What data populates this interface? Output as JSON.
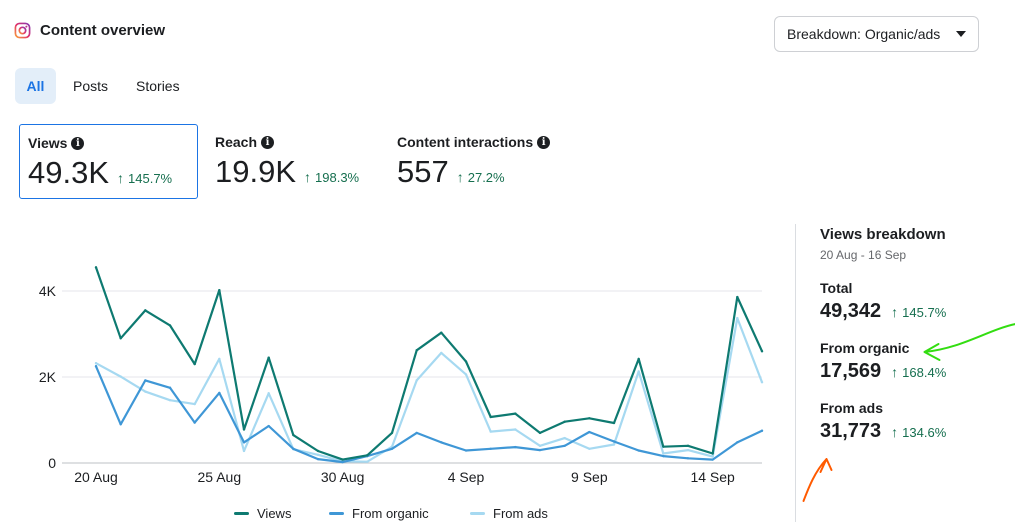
{
  "header": {
    "title": "Content overview",
    "icon": "instagram-icon"
  },
  "breakdown": {
    "label": "Breakdown: Organic/ads"
  },
  "tabs": [
    {
      "label": "All",
      "active": true
    },
    {
      "label": "Posts",
      "active": false
    },
    {
      "label": "Stories",
      "active": false
    }
  ],
  "metrics": [
    {
      "label": "Views",
      "value": "49.3K",
      "delta": "145.7%"
    },
    {
      "label": "Reach",
      "value": "19.9K",
      "delta": "198.3%"
    },
    {
      "label": "Content interactions",
      "value": "557",
      "delta": "27.2%"
    }
  ],
  "colors": {
    "views": "#0e7a71",
    "organic": "#3f97d6",
    "ads": "#a6d9f1",
    "accent": "#1b74e4",
    "positive": "#166f4f"
  },
  "chart_data": {
    "type": "line",
    "x": [
      "20 Aug",
      "21 Aug",
      "22 Aug",
      "23 Aug",
      "24 Aug",
      "25 Aug",
      "26 Aug",
      "27 Aug",
      "28 Aug",
      "29 Aug",
      "30 Aug",
      "31 Aug",
      "1 Sep",
      "2 Sep",
      "3 Sep",
      "4 Sep",
      "5 Sep",
      "6 Sep",
      "7 Sep",
      "8 Sep",
      "9 Sep",
      "10 Sep",
      "11 Sep",
      "12 Sep",
      "13 Sep",
      "14 Sep",
      "15 Sep",
      "16 Sep"
    ],
    "xticks": [
      "20 Aug",
      "25 Aug",
      "30 Aug",
      "4 Sep",
      "9 Sep",
      "14 Sep"
    ],
    "yticks": [
      "0",
      "2K",
      "4K"
    ],
    "ylim": [
      0,
      4000
    ],
    "series": [
      {
        "name": "Views",
        "values": [
          4550,
          2900,
          3550,
          3200,
          2300,
          4020,
          780,
          2450,
          650,
          280,
          80,
          180,
          700,
          2620,
          3030,
          2360,
          1070,
          1150,
          700,
          960,
          1040,
          930,
          2420,
          380,
          400,
          220,
          3860,
          2600
        ]
      },
      {
        "name": "From organic",
        "values": [
          2250,
          900,
          1920,
          1750,
          940,
          1630,
          480,
          860,
          330,
          90,
          20,
          160,
          330,
          700,
          480,
          290,
          330,
          370,
          300,
          400,
          720,
          500,
          290,
          160,
          110,
          80,
          480,
          750
        ]
      },
      {
        "name": "From ads",
        "values": [
          2320,
          2010,
          1660,
          1460,
          1370,
          2420,
          280,
          1620,
          320,
          190,
          40,
          30,
          380,
          1920,
          2560,
          2060,
          730,
          780,
          400,
          580,
          330,
          430,
          2130,
          220,
          300,
          150,
          3370,
          1880
        ]
      }
    ]
  },
  "sidebar": {
    "title": "Views breakdown",
    "date_range": "20 Aug - 16 Sep",
    "rows": [
      {
        "label": "Total",
        "value": "49,342",
        "delta": "145.7%"
      },
      {
        "label": "From organic",
        "value": "17,569",
        "delta": "168.4%"
      },
      {
        "label": "From ads",
        "value": "31,773",
        "delta": "134.6%"
      }
    ]
  }
}
